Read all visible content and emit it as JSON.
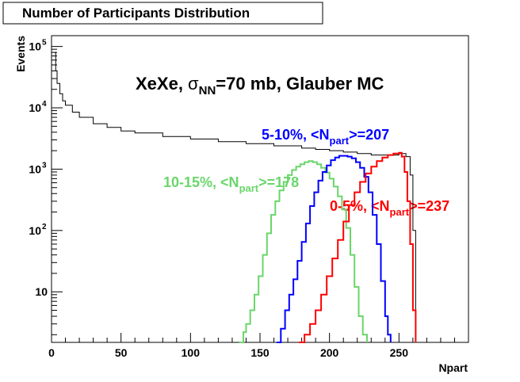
{
  "chart_data": {
    "type": "line",
    "title": "Number of Participants Distribution",
    "xlabel": "Npart",
    "ylabel": "Events",
    "xlim": [
      0,
      300
    ],
    "ylim": [
      1.5,
      150000
    ],
    "y_scale": "log",
    "grid": false,
    "x_ticks": [
      0,
      50,
      100,
      150,
      200,
      250
    ],
    "y_ticks": [
      {
        "value": 10,
        "label": "10",
        "sup": ""
      },
      {
        "value": 100,
        "label": "10",
        "sup": "2"
      },
      {
        "value": 1000,
        "label": "10",
        "sup": "3"
      },
      {
        "value": 10000,
        "label": "10",
        "sup": "4"
      },
      {
        "value": 100000,
        "label": "10",
        "sup": "5"
      }
    ],
    "annotation": {
      "prefix": "XeXe,  ",
      "sigma": "σ",
      "sub": "NN",
      "suffix": "=70 mb, Glauber MC"
    },
    "series": [
      {
        "color": "#000000",
        "x": [
          2,
          3,
          4,
          6,
          8,
          10,
          15,
          20,
          30,
          40,
          50,
          60,
          80,
          100,
          120,
          140,
          160,
          180,
          190,
          200,
          210,
          220,
          230,
          240,
          250,
          255,
          258,
          260,
          262
        ],
        "values": [
          80000,
          40000,
          25000,
          17000,
          13000,
          11000,
          8500,
          7000,
          5500,
          4800,
          4200,
          3900,
          3400,
          3100,
          2800,
          2600,
          2400,
          2200,
          2100,
          2000,
          1900,
          1800,
          1700,
          1700,
          1800,
          1600,
          800,
          100,
          2
        ]
      },
      {
        "color": "#6ad66a",
        "label_text": "10-15%, <N",
        "label_sub": "part",
        "label_suffix": ">=178",
        "x": [
          135,
          138,
          140,
          143,
          146,
          149,
          152,
          155,
          158,
          161,
          164,
          167,
          170,
          173,
          176,
          179,
          182,
          185,
          188,
          191,
          194,
          197,
          200,
          203,
          206,
          209,
          212,
          215,
          218,
          221,
          224,
          227
        ],
        "values": [
          1.5,
          2.2,
          3,
          5,
          9,
          18,
          40,
          90,
          180,
          300,
          450,
          620,
          800,
          970,
          1100,
          1200,
          1300,
          1350,
          1300,
          1200,
          1050,
          880,
          700,
          520,
          360,
          220,
          110,
          40,
          12,
          4,
          2,
          1.5
        ]
      },
      {
        "color": "#0000ff",
        "label_text": "5-10%, <N",
        "label_sub": "part",
        "label_suffix": ">=207",
        "x": [
          162,
          165,
          168,
          171,
          174,
          177,
          180,
          183,
          186,
          189,
          192,
          195,
          198,
          201,
          204,
          207,
          210,
          213,
          216,
          219,
          222,
          225,
          228,
          231,
          234,
          237,
          240,
          242,
          244
        ],
        "values": [
          1.5,
          2.5,
          5,
          9,
          16,
          32,
          65,
          130,
          250,
          420,
          650,
          900,
          1150,
          1400,
          1550,
          1650,
          1650,
          1600,
          1500,
          1300,
          1050,
          750,
          420,
          180,
          60,
          15,
          4,
          2,
          1.5
        ]
      },
      {
        "color": "#ff0000",
        "label_text": "0-5%, <N",
        "label_sub": "part",
        "label_suffix": ">=237",
        "x": [
          178,
          182,
          186,
          190,
          194,
          198,
          202,
          206,
          210,
          214,
          218,
          222,
          226,
          230,
          234,
          238,
          242,
          246,
          250,
          252,
          254,
          256,
          258,
          260,
          262
        ],
        "values": [
          1.5,
          2,
          3,
          5,
          9,
          18,
          35,
          70,
          140,
          260,
          420,
          620,
          850,
          1100,
          1350,
          1550,
          1700,
          1800,
          1850,
          1600,
          900,
          300,
          60,
          5,
          1.5
        ]
      }
    ]
  }
}
